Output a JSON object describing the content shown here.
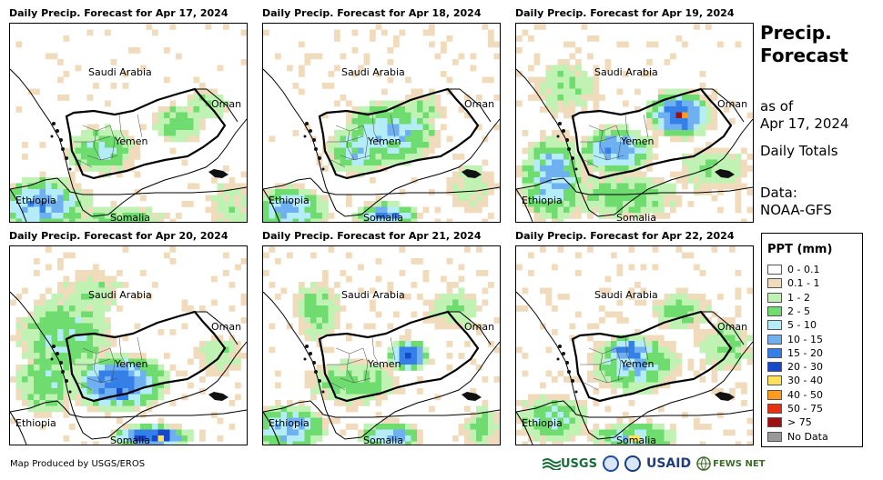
{
  "panels": [
    {
      "title": "Daily Precip. Forecast for Apr 17, 2024",
      "scene": 0
    },
    {
      "title": "Daily Precip. Forecast for Apr 18, 2024",
      "scene": 1
    },
    {
      "title": "Daily Precip. Forecast for Apr 19, 2024",
      "scene": 2
    },
    {
      "title": "Daily Precip. Forecast for Apr 20, 2024",
      "scene": 3
    },
    {
      "title": "Daily Precip. Forecast for Apr 21, 2024",
      "scene": 4
    },
    {
      "title": "Daily Precip. Forecast for Apr 22, 2024",
      "scene": 5
    }
  ],
  "map_labels": {
    "saudi": "Saudi Arabia",
    "yemen": "Yemen",
    "oman": "Oman",
    "ethiopia": "Ethiopia",
    "somalia": "Somalia"
  },
  "side": {
    "title_line1": "Precip.",
    "title_line2": "Forecast",
    "asof_line1": "as of",
    "asof_line2": "Apr 17, 2024",
    "period": "Daily Totals",
    "data_line1": "Data:",
    "data_line2": "NOAA-GFS"
  },
  "legend": {
    "title": "PPT (mm)",
    "items": [
      {
        "label": "0 - 0.1",
        "color": "#ffffff"
      },
      {
        "label": "0.1 - 1",
        "color": "#f0dcbc"
      },
      {
        "label": "1 - 2",
        "color": "#bff2b3"
      },
      {
        "label": "2 - 5",
        "color": "#6fdc6f"
      },
      {
        "label": "5 - 10",
        "color": "#b4ecf8"
      },
      {
        "label": "10 - 15",
        "color": "#6fb1f0"
      },
      {
        "label": "15 - 20",
        "color": "#3580e8"
      },
      {
        "label": "20 - 30",
        "color": "#1648cc"
      },
      {
        "label": "30 - 40",
        "color": "#ffe15a"
      },
      {
        "label": "40 - 50",
        "color": "#ff9b1f"
      },
      {
        "label": "50 - 75",
        "color": "#e6300f"
      },
      {
        "label": "> 75",
        "color": "#a01010"
      },
      {
        "label": "No Data",
        "color": "#999999"
      }
    ]
  },
  "credit": "Map Produced by USGS/EROS",
  "logos": {
    "usgs": "USGS",
    "usaid": "USAID",
    "fews": "FEWS NET"
  }
}
